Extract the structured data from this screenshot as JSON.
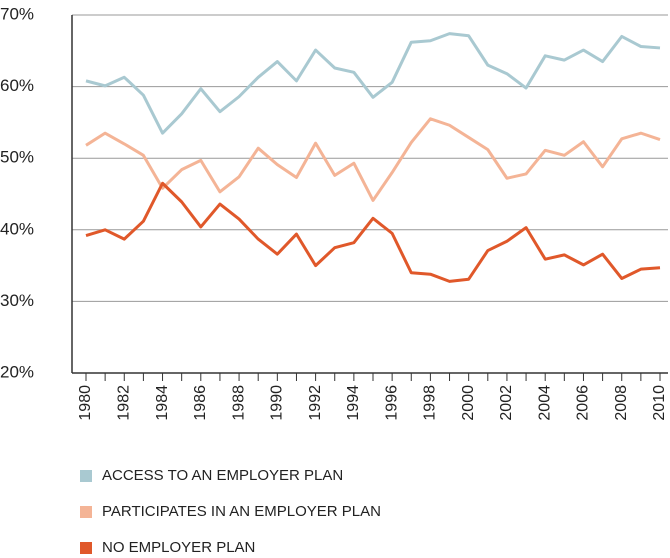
{
  "chart_data": {
    "type": "line",
    "x": [
      1980,
      1981,
      1982,
      1983,
      1984,
      1985,
      1986,
      1987,
      1988,
      1989,
      1990,
      1991,
      1992,
      1993,
      1994,
      1995,
      1996,
      1997,
      1998,
      1999,
      2000,
      2001,
      2002,
      2003,
      2004,
      2005,
      2006,
      2007,
      2008,
      2009,
      2010
    ],
    "xlim": [
      1980,
      2010
    ],
    "xticks": [
      1980,
      1982,
      1984,
      1986,
      1988,
      1990,
      1992,
      1994,
      1996,
      1998,
      2000,
      2002,
      2004,
      2006,
      2008,
      2010
    ],
    "ylim": [
      20,
      70
    ],
    "yticks": [
      {
        "value": 20,
        "label": "20%"
      },
      {
        "value": 30,
        "label": "30%"
      },
      {
        "value": 40,
        "label": "40%"
      },
      {
        "value": 50,
        "label": "50%"
      },
      {
        "value": 60,
        "label": "60%"
      },
      {
        "value": 70,
        "label": "70%"
      }
    ],
    "grid": true,
    "series": [
      {
        "name": "ACCESS TO AN EMPLOYER PLAN",
        "color": "#a9c9d1",
        "values": [
          60.8,
          60.1,
          61.3,
          58.8,
          53.5,
          56.2,
          59.7,
          56.5,
          58.6,
          61.3,
          63.5,
          60.8,
          65.1,
          62.6,
          62.0,
          58.5,
          60.6,
          66.2,
          66.4,
          67.4,
          67.1,
          63.0,
          61.8,
          59.8,
          64.3,
          63.7,
          65.1,
          63.5,
          67.0,
          65.6,
          65.4
        ]
      },
      {
        "name": "PARTICIPATES IN AN EMPLOYER PLAN",
        "color": "#f4b496",
        "values": [
          51.8,
          53.5,
          52.0,
          50.4,
          45.8,
          48.4,
          49.7,
          45.3,
          47.4,
          51.4,
          49.1,
          47.3,
          52.1,
          47.6,
          49.3,
          44.1,
          48.0,
          52.2,
          55.5,
          54.6,
          52.9,
          51.2,
          47.2,
          47.8,
          51.1,
          50.4,
          52.3,
          48.8,
          52.7,
          53.5,
          52.6
        ]
      },
      {
        "name": "NO EMPLOYER PLAN",
        "color": "#e0582a",
        "values": [
          39.2,
          40.0,
          38.7,
          41.2,
          46.5,
          43.9,
          40.4,
          43.6,
          41.5,
          38.7,
          36.6,
          39.4,
          35.0,
          37.5,
          38.2,
          41.6,
          39.5,
          34.0,
          33.8,
          32.8,
          33.1,
          37.1,
          38.4,
          40.3,
          35.9,
          36.5,
          35.1,
          36.6,
          33.2,
          34.5,
          34.7
        ]
      }
    ]
  }
}
